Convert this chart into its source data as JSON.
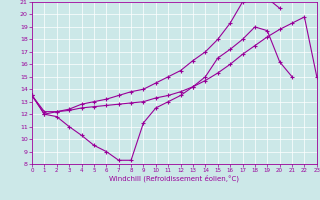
{
  "xlabel": "Windchill (Refroidissement éolien,°C)",
  "bg_color": "#cce8e8",
  "line_color": "#990099",
  "xmin": 0,
  "xmax": 23,
  "ymin": 8,
  "ymax": 21,
  "yticks": [
    8,
    9,
    10,
    11,
    12,
    13,
    14,
    15,
    16,
    17,
    18,
    19,
    20,
    21
  ],
  "xticks": [
    0,
    1,
    2,
    3,
    4,
    5,
    6,
    7,
    8,
    9,
    10,
    11,
    12,
    13,
    14,
    15,
    16,
    17,
    18,
    19,
    20,
    21,
    22,
    23
  ],
  "curve1_x": [
    0,
    1,
    2,
    3,
    4,
    5,
    6,
    7,
    8,
    9,
    10,
    11,
    12,
    13,
    14,
    15,
    16,
    17,
    18,
    19,
    20,
    21
  ],
  "curve1_y": [
    13.5,
    12.0,
    11.8,
    11.0,
    10.3,
    9.5,
    9.0,
    8.3,
    8.3,
    11.3,
    12.5,
    13.0,
    13.5,
    14.2,
    15.0,
    16.5,
    17.2,
    18.0,
    19.0,
    18.7,
    16.2,
    15.0
  ],
  "curve2_x": [
    0,
    1,
    2,
    3,
    4,
    5,
    6,
    7,
    8,
    9,
    10,
    11,
    12,
    13,
    14,
    15,
    16,
    17,
    18,
    19,
    20,
    21,
    22,
    23
  ],
  "curve2_y": [
    13.5,
    12.2,
    12.2,
    12.3,
    12.5,
    12.6,
    12.7,
    12.8,
    12.9,
    13.0,
    13.3,
    13.5,
    13.8,
    14.2,
    14.7,
    15.3,
    16.0,
    16.8,
    17.5,
    18.2,
    18.8,
    19.3,
    19.8,
    15.0
  ],
  "curve3_x": [
    0,
    1,
    2,
    3,
    4,
    5,
    6,
    7,
    8,
    9,
    10,
    11,
    12,
    13,
    14,
    15,
    16,
    17,
    18,
    19,
    20
  ],
  "curve3_y": [
    13.5,
    12.0,
    12.2,
    12.4,
    12.8,
    13.0,
    13.2,
    13.5,
    13.8,
    14.0,
    14.5,
    15.0,
    15.5,
    16.3,
    17.0,
    18.0,
    19.3,
    21.0,
    21.3,
    21.3,
    20.5
  ]
}
